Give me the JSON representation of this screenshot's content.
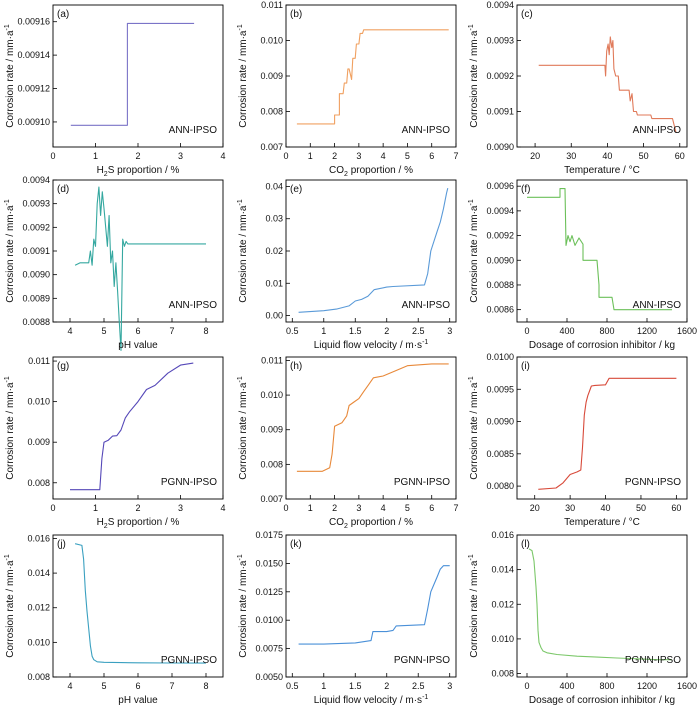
{
  "figure": {
    "ylabel": "Corrosion rate / mm·a",
    "ylabel_sup": "-1"
  },
  "chart_data": [
    {
      "id": "a",
      "panel_label": "(a)",
      "type": "line",
      "color": "#7b74c8",
      "xlabel": "H",
      "xlabel_sub": "2",
      "xlabel_rest": "S proportion / %",
      "xlim": [
        0,
        4
      ],
      "xticks": [
        0,
        1,
        2,
        3,
        4
      ],
      "ylim": [
        0.009085,
        0.00917
      ],
      "yticks": [
        0.0091,
        0.00912,
        0.00914,
        0.00916
      ],
      "ytick_labels": [
        "0.00910",
        "0.00912",
        "0.00914",
        "0.00916"
      ],
      "model": "ANN-IPSO",
      "x": [
        0.42,
        1.75,
        1.75,
        3.32
      ],
      "y": [
        0.009098,
        0.009098,
        0.009159,
        0.009159
      ]
    },
    {
      "id": "b",
      "panel_label": "(b)",
      "type": "line",
      "color": "#f0a060",
      "xlabel": "CO",
      "xlabel_sub": "2",
      "xlabel_rest": " proportion / %",
      "xlim": [
        0,
        7
      ],
      "xticks": [
        0,
        1,
        2,
        3,
        4,
        5,
        6,
        7
      ],
      "ylim": [
        0.007,
        0.011
      ],
      "yticks": [
        0.007,
        0.008,
        0.009,
        0.01,
        0.011
      ],
      "ytick_labels": [
        "0.007",
        "0.008",
        "0.009",
        "0.010",
        "0.011"
      ],
      "model": "ANN-IPSO",
      "x": [
        0.45,
        2.0,
        2.0,
        2.2,
        2.2,
        2.35,
        2.4,
        2.5,
        2.55,
        2.6,
        2.7,
        2.75,
        2.85,
        2.9,
        3.0,
        3.05,
        3.15,
        3.2,
        6.7
      ],
      "y": [
        0.00765,
        0.00765,
        0.0079,
        0.0079,
        0.0085,
        0.0085,
        0.0088,
        0.0088,
        0.0092,
        0.0092,
        0.0089,
        0.0095,
        0.0095,
        0.0099,
        0.0099,
        0.0102,
        0.0102,
        0.0103,
        0.0103
      ]
    },
    {
      "id": "c",
      "panel_label": "(c)",
      "type": "line",
      "color": "#e07a5a",
      "xlabel": "Temperature / °C",
      "xlabel_sub": "",
      "xlabel_rest": "",
      "xlim": [
        15,
        62
      ],
      "xticks": [
        20,
        30,
        40,
        50,
        60
      ],
      "ylim": [
        0.009,
        0.0094
      ],
      "yticks": [
        0.009,
        0.0091,
        0.0092,
        0.0093,
        0.0094
      ],
      "ytick_labels": [
        "0.0090",
        "0.0091",
        "0.0092",
        "0.0093",
        "0.0094"
      ],
      "model": "ANN-IPSO",
      "x": [
        21,
        39.3,
        39.5,
        39.8,
        40.2,
        40.5,
        40.8,
        41.2,
        41.5,
        41.8,
        42.3,
        43,
        43.3,
        44,
        46,
        46.3,
        46.8,
        47.2,
        48,
        48.3,
        52,
        52.3,
        58,
        58.5,
        59
      ],
      "y": [
        0.00923,
        0.00923,
        0.0092,
        0.00927,
        0.00929,
        0.00926,
        0.00931,
        0.00928,
        0.0093,
        0.00922,
        0.0092,
        0.0092,
        0.00916,
        0.00916,
        0.00916,
        0.00913,
        0.00915,
        0.0091,
        0.0091,
        0.00909,
        0.00909,
        0.00908,
        0.00908,
        0.00906,
        0.00904
      ]
    },
    {
      "id": "d",
      "panel_label": "(d)",
      "type": "line",
      "color": "#35a8a0",
      "xlabel": "pH value",
      "xlabel_sub": "",
      "xlabel_rest": "",
      "xlim": [
        3.5,
        8.5
      ],
      "xticks": [
        4,
        5,
        6,
        7,
        8
      ],
      "ylim": [
        0.0088,
        0.0094
      ],
      "yticks": [
        0.0088,
        0.0089,
        0.009,
        0.0091,
        0.0092,
        0.0093,
        0.0094
      ],
      "ytick_labels": [
        "0.0088",
        "0.0089",
        "0.0090",
        "0.0091",
        "0.0092",
        "0.0093",
        "0.0094"
      ],
      "model": "ANN-IPSO",
      "x": [
        4.15,
        4.3,
        4.55,
        4.6,
        4.65,
        4.7,
        4.75,
        4.8,
        4.85,
        4.9,
        4.95,
        5.0,
        5.05,
        5.1,
        5.15,
        5.2,
        5.25,
        5.3,
        5.35,
        5.4,
        5.45,
        5.5,
        5.55,
        5.6,
        5.65,
        5.7,
        8.0
      ],
      "y": [
        0.00904,
        0.00905,
        0.00905,
        0.0091,
        0.00904,
        0.00915,
        0.00912,
        0.0093,
        0.00937,
        0.00925,
        0.00935,
        0.00928,
        0.0092,
        0.00912,
        0.00925,
        0.00905,
        0.0091,
        0.00895,
        0.00905,
        0.00893,
        0.0088,
        0.00868,
        0.00915,
        0.00912,
        0.00914,
        0.00913,
        0.00913
      ]
    },
    {
      "id": "e",
      "panel_label": "(e)",
      "type": "line",
      "color": "#5a9ad8",
      "xlabel": "Liquid flow velocity / m·s",
      "xlabel_sub": "",
      "xlabel_rest": "",
      "xlabel_sup": "-1",
      "xlim": [
        0.4,
        3.1
      ],
      "xticks": [
        0.5,
        1.0,
        1.5,
        2.0,
        2.5,
        3.0
      ],
      "ylim": [
        -0.002,
        0.042
      ],
      "yticks": [
        0,
        0.01,
        0.02,
        0.03,
        0.04
      ],
      "ytick_labels": [
        "0.00",
        "0.01",
        "0.02",
        "0.03",
        "0.04"
      ],
      "model": "ANN-IPSO",
      "x": [
        0.6,
        1.0,
        1.2,
        1.4,
        1.5,
        1.6,
        1.7,
        1.75,
        1.8,
        2.0,
        2.1,
        2.6,
        2.65,
        2.7,
        2.8,
        2.85,
        2.9,
        2.95,
        2.97
      ],
      "y": [
        0.001,
        0.0015,
        0.002,
        0.003,
        0.0045,
        0.005,
        0.006,
        0.007,
        0.008,
        0.0088,
        0.009,
        0.0095,
        0.013,
        0.02,
        0.026,
        0.029,
        0.033,
        0.038,
        0.0395
      ]
    },
    {
      "id": "f",
      "panel_label": "(f)",
      "type": "line",
      "color": "#6cc05a",
      "xlabel": "Dosage of corrosion inhibitor / kg",
      "xlabel_sub": "",
      "xlabel_rest": "",
      "xlim": [
        -100,
        1600
      ],
      "xticks": [
        0,
        400,
        800,
        1200,
        1600
      ],
      "ylim": [
        0.0085,
        0.00965
      ],
      "yticks": [
        0.0086,
        0.0088,
        0.009,
        0.0092,
        0.0094,
        0.0096
      ],
      "ytick_labels": [
        "0.0086",
        "0.0088",
        "0.0090",
        "0.0092",
        "0.0094",
        "0.0096"
      ],
      "model": "ANN-IPSO",
      "x": [
        0,
        330,
        330,
        380,
        390,
        410,
        430,
        450,
        480,
        520,
        560,
        560,
        600,
        700,
        720,
        720,
        850,
        870,
        1450
      ],
      "y": [
        0.00951,
        0.00951,
        0.00958,
        0.00958,
        0.00912,
        0.0092,
        0.00915,
        0.0092,
        0.00912,
        0.00918,
        0.00913,
        0.009,
        0.009,
        0.009,
        0.0088,
        0.0087,
        0.0087,
        0.0086,
        0.0086
      ]
    },
    {
      "id": "g",
      "panel_label": "(g)",
      "type": "line",
      "color": "#5548b8",
      "xlabel": "H",
      "xlabel_sub": "2",
      "xlabel_rest": "S proportion / %",
      "xlim": [
        0,
        4
      ],
      "xticks": [
        0,
        1,
        2,
        3,
        4
      ],
      "ylim": [
        0.0076,
        0.0111
      ],
      "yticks": [
        0.008,
        0.009,
        0.01,
        0.011
      ],
      "ytick_labels": [
        "0.008",
        "0.009",
        "0.010",
        "0.011"
      ],
      "model": "PGNN-IPSO",
      "x": [
        0.4,
        1.1,
        1.15,
        1.2,
        1.3,
        1.4,
        1.5,
        1.6,
        1.7,
        1.8,
        2.0,
        2.2,
        2.4,
        2.7,
        3.0,
        3.3
      ],
      "y": [
        0.00783,
        0.00783,
        0.0086,
        0.009,
        0.00905,
        0.00915,
        0.00916,
        0.0093,
        0.0096,
        0.00975,
        0.01,
        0.0103,
        0.0104,
        0.0107,
        0.0109,
        0.01095
      ]
    },
    {
      "id": "h",
      "panel_label": "(h)",
      "type": "line",
      "color": "#e8893a",
      "xlabel": "CO",
      "xlabel_sub": "2",
      "xlabel_rest": " proportion / %",
      "xlim": [
        0,
        7
      ],
      "xticks": [
        0,
        1,
        2,
        3,
        4,
        5,
        6,
        7
      ],
      "ylim": [
        0.007,
        0.0111
      ],
      "yticks": [
        0.007,
        0.008,
        0.009,
        0.01,
        0.011
      ],
      "ytick_labels": [
        "0.007",
        "0.008",
        "0.009",
        "0.010",
        "0.011"
      ],
      "model": "PGNN-IPSO",
      "x": [
        0.45,
        1.5,
        1.8,
        1.9,
        2.0,
        2.3,
        2.5,
        2.6,
        2.8,
        3.0,
        3.2,
        3.4,
        3.6,
        4.0,
        4.5,
        5.0,
        6.0,
        6.7
      ],
      "y": [
        0.0078,
        0.0078,
        0.0079,
        0.0083,
        0.0091,
        0.0092,
        0.0094,
        0.0097,
        0.0098,
        0.0099,
        0.0101,
        0.0103,
        0.0105,
        0.01055,
        0.0107,
        0.01085,
        0.0109,
        0.0109
      ]
    },
    {
      "id": "i",
      "panel_label": "(i)",
      "type": "line",
      "color": "#d84a3a",
      "xlabel": "Temperature / °C",
      "xlabel_sub": "",
      "xlabel_rest": "",
      "xlim": [
        15,
        63
      ],
      "xticks": [
        20,
        30,
        40,
        50,
        60
      ],
      "ylim": [
        0.0078,
        0.01
      ],
      "yticks": [
        0.008,
        0.0085,
        0.009,
        0.0095,
        0.01
      ],
      "ytick_labels": [
        "0.0080",
        "0.0085",
        "0.0090",
        "0.0095",
        "0.0100"
      ],
      "model": "PGNN-IPSO",
      "x": [
        21,
        26,
        28,
        30,
        32,
        33,
        33.5,
        34,
        34.5,
        35,
        36,
        37,
        40,
        41,
        60
      ],
      "y": [
        0.00795,
        0.00797,
        0.00805,
        0.00818,
        0.00822,
        0.00825,
        0.0086,
        0.0091,
        0.0093,
        0.0094,
        0.00955,
        0.00956,
        0.00957,
        0.00967,
        0.00967
      ]
    },
    {
      "id": "j",
      "panel_label": "(j)",
      "type": "line",
      "color": "#3aa0c0",
      "xlabel": "pH value",
      "xlabel_sub": "",
      "xlabel_rest": "",
      "xlim": [
        3.5,
        8.5
      ],
      "xticks": [
        4,
        5,
        6,
        7,
        8
      ],
      "ylim": [
        0.008,
        0.0162
      ],
      "yticks": [
        0.008,
        0.01,
        0.012,
        0.014,
        0.016
      ],
      "ytick_labels": [
        "0.008",
        "0.010",
        "0.012",
        "0.014",
        "0.016"
      ],
      "model": "PGNN-IPSO",
      "x": [
        4.15,
        4.35,
        4.4,
        4.45,
        4.5,
        4.55,
        4.6,
        4.65,
        4.7,
        4.8,
        5.0,
        5.5,
        6.0,
        7.0,
        8.0
      ],
      "y": [
        0.0157,
        0.0156,
        0.0148,
        0.013,
        0.0118,
        0.0108,
        0.0098,
        0.0092,
        0.009,
        0.00888,
        0.00885,
        0.00883,
        0.00882,
        0.00881,
        0.0088
      ]
    },
    {
      "id": "k",
      "panel_label": "(k)",
      "type": "line",
      "color": "#4a90d8",
      "xlabel": "Liquid flow velocity / m·s",
      "xlabel_sub": "",
      "xlabel_rest": "",
      "xlabel_sup": "-1",
      "xlim": [
        0.4,
        3.1
      ],
      "xticks": [
        0.5,
        1.0,
        1.5,
        2.0,
        2.5,
        3.0
      ],
      "ylim": [
        0.005,
        0.0175
      ],
      "yticks": [
        0.005,
        0.0075,
        0.01,
        0.0125,
        0.015,
        0.0175
      ],
      "ytick_labels": [
        "0.0050",
        "0.0075",
        "0.0100",
        "0.0125",
        "0.0150",
        "0.0175"
      ],
      "model": "PGNN-IPSO",
      "x": [
        0.6,
        1.0,
        1.5,
        1.75,
        1.78,
        2.0,
        2.1,
        2.15,
        2.6,
        2.65,
        2.7,
        2.8,
        2.85,
        2.9,
        3.0
      ],
      "y": [
        0.0079,
        0.0079,
        0.008,
        0.0082,
        0.009,
        0.009,
        0.0091,
        0.0095,
        0.0096,
        0.011,
        0.0125,
        0.0138,
        0.0145,
        0.0148,
        0.0148
      ]
    },
    {
      "id": "l",
      "panel_label": "(l)",
      "type": "line",
      "color": "#7cc86a",
      "xlabel": "Dosage of corrosion inhibitor / kg",
      "xlabel_sub": "",
      "xlabel_rest": "",
      "xlim": [
        -100,
        1600
      ],
      "xticks": [
        0,
        400,
        800,
        1200,
        1600
      ],
      "ylim": [
        0.0078,
        0.016
      ],
      "yticks": [
        0.008,
        0.01,
        0.012,
        0.014,
        0.016
      ],
      "ytick_labels": [
        "0.008",
        "0.010",
        "0.012",
        "0.014",
        "0.016"
      ],
      "model": "PGNN-IPSO",
      "x": [
        20,
        50,
        70,
        90,
        100,
        110,
        120,
        140,
        160,
        200,
        300,
        500,
        700,
        900,
        1100,
        1300,
        1450
      ],
      "y": [
        0.0152,
        0.0151,
        0.0145,
        0.013,
        0.012,
        0.0105,
        0.0098,
        0.0095,
        0.0093,
        0.0092,
        0.0091,
        0.009,
        0.00895,
        0.0089,
        0.00885,
        0.0088,
        0.0088
      ]
    }
  ]
}
